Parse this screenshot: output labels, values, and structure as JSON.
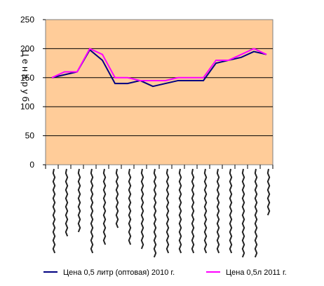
{
  "chart_data": {
    "type": "line",
    "title": "",
    "xlabel": "",
    "ylabel": "Ц е н а р у б",
    "ylim": [
      0,
      250
    ],
    "yticks": [
      "0",
      "50",
      "100",
      "150",
      "200",
      "250"
    ],
    "grid": true,
    "legend_position": "bottom",
    "plot_background": "#FFCC99",
    "x_count": 18,
    "series": [
      {
        "name": "Цена 0,5 литр (оптовая) 2010 г.",
        "color": "#000080",
        "values": [
          150,
          155,
          160,
          198,
          180,
          140,
          140,
          145,
          135,
          140,
          145,
          145,
          145,
          175,
          180,
          185,
          195,
          190
        ]
      },
      {
        "name": "Цена 0,5л 2011 г.",
        "color": "#FF00FF",
        "values": [
          150,
          160,
          160,
          200,
          190,
          150,
          150,
          145,
          145,
          145,
          150,
          150,
          150,
          180,
          180,
          190,
          200,
          190
        ]
      }
    ]
  }
}
